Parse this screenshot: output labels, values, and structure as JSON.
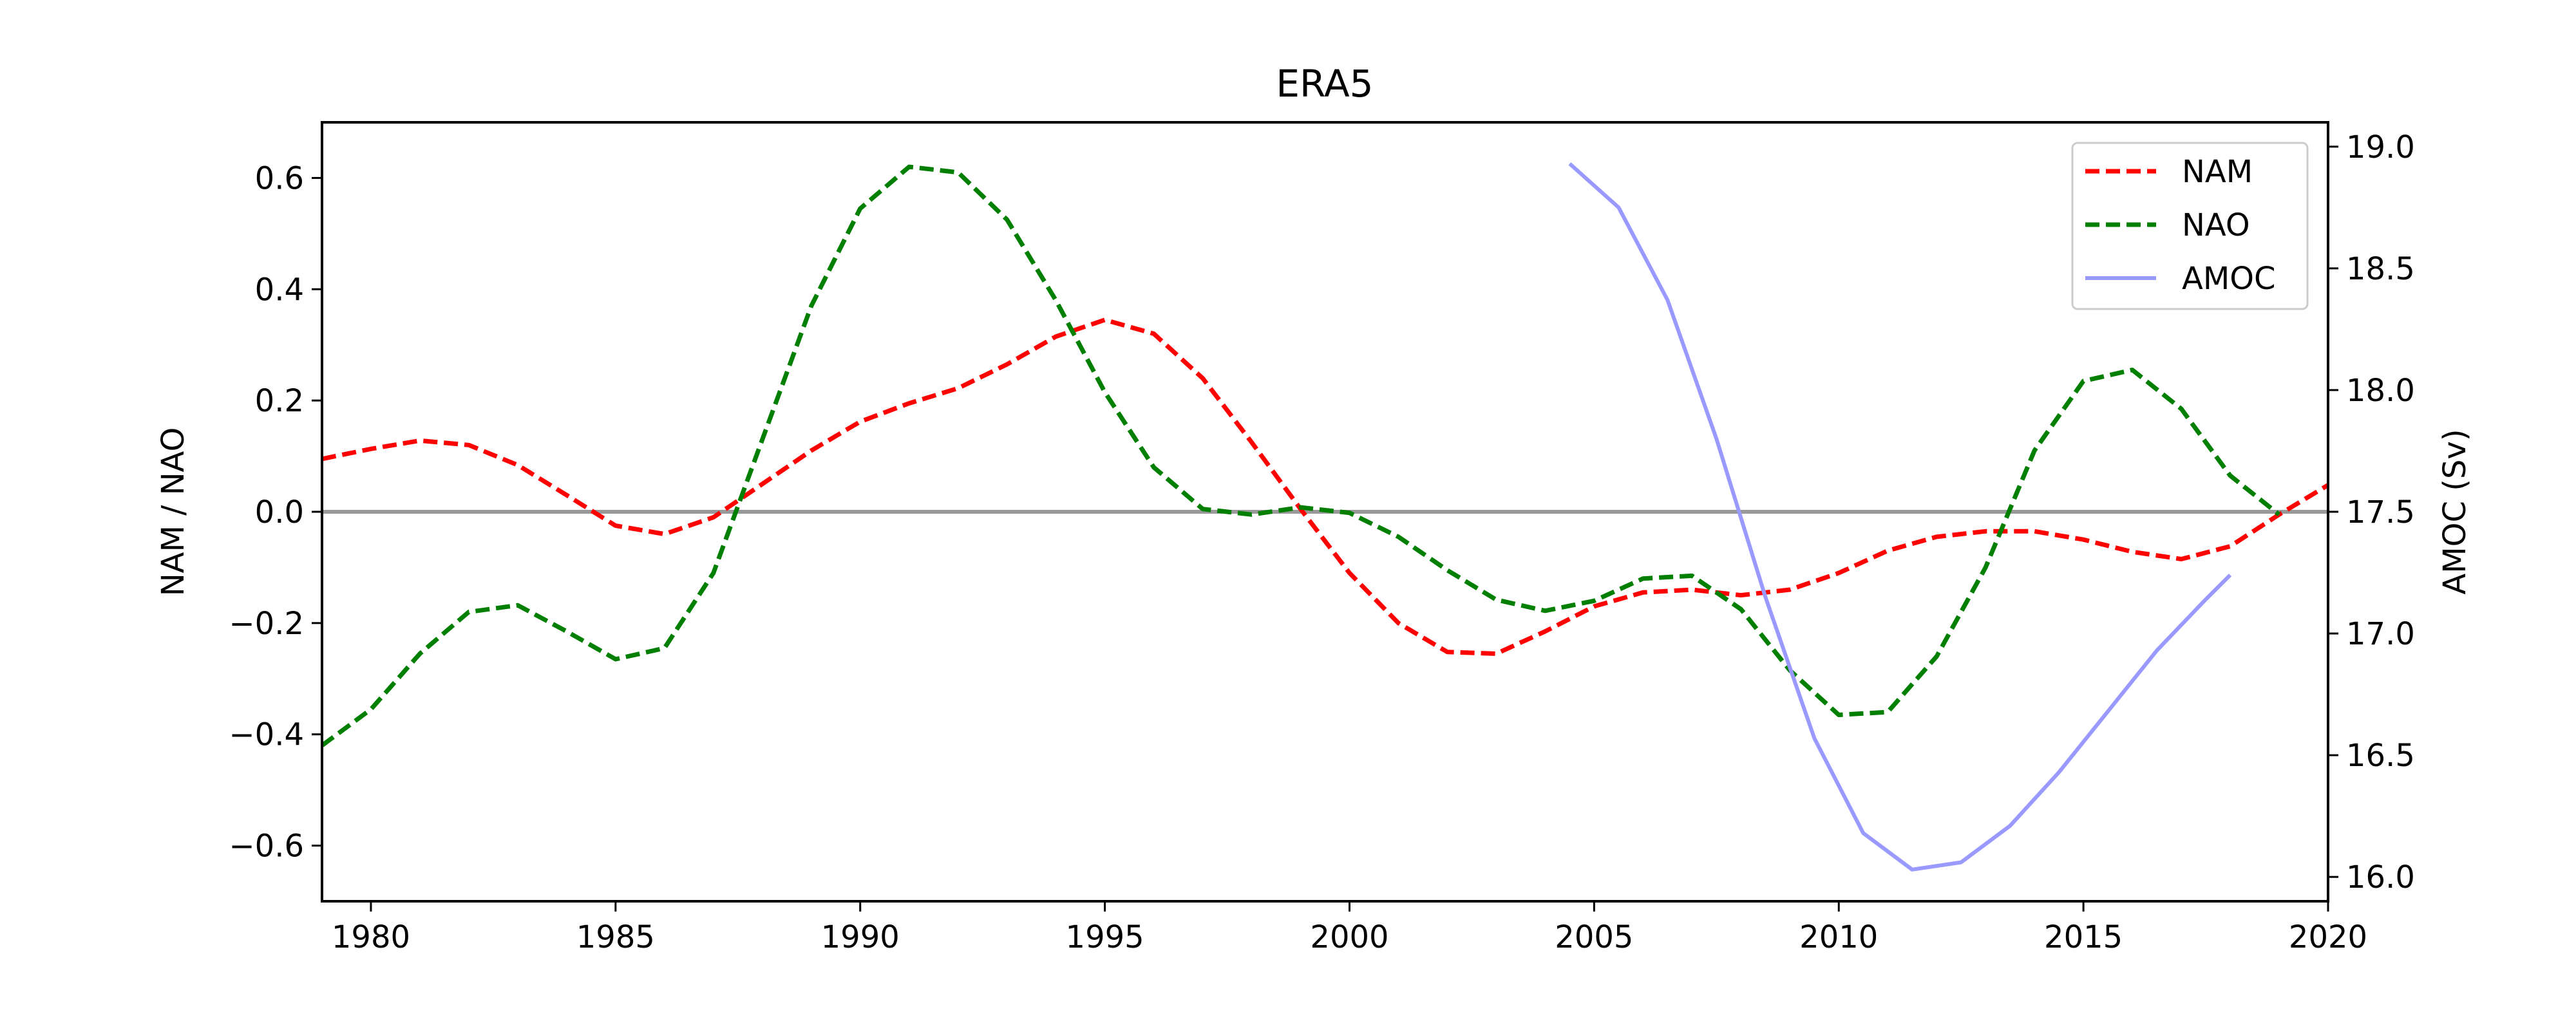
{
  "chart_data": {
    "type": "line",
    "title": "ERA5",
    "xlabel": "",
    "ylabel": "NAM / NAO",
    "y2label": "AMOC (Sv)",
    "xlim": [
      1979,
      2020
    ],
    "ylim": [
      -0.7,
      0.7
    ],
    "y2lim": [
      15.9,
      19.1
    ],
    "xticks": [
      1980,
      1985,
      1990,
      1995,
      2000,
      2005,
      2010,
      2015,
      2020
    ],
    "xtick_labels": [
      "1980",
      "1985",
      "1990",
      "1995",
      "2000",
      "2005",
      "2010",
      "2015",
      "2020"
    ],
    "yticks": [
      -0.6,
      -0.4,
      -0.2,
      0.0,
      0.2,
      0.4,
      0.6
    ],
    "ytick_labels": [
      "−0.6",
      "−0.4",
      "−0.2",
      "0.0",
      "0.2",
      "0.4",
      "0.6"
    ],
    "y2ticks": [
      16.0,
      16.5,
      17.0,
      17.5,
      18.0,
      18.5,
      19.0
    ],
    "y2tick_labels": [
      "16.0",
      "16.5",
      "17.0",
      "17.5",
      "18.0",
      "18.5",
      "19.0"
    ],
    "zero_line": 0.0,
    "grid": false,
    "legend_position": "top-right",
    "colors": {
      "NAM": "#ff0000",
      "NAO": "#007f00",
      "AMOC": "#9999ff",
      "zero": "#999999"
    },
    "series": [
      {
        "name": "NAM",
        "axis": "left",
        "style": "dashed",
        "x": [
          1979,
          1980,
          1981,
          1982,
          1983,
          1984,
          1985,
          1986,
          1987,
          1988,
          1989,
          1990,
          1991,
          1992,
          1993,
          1994,
          1995,
          1996,
          1997,
          1998,
          1999,
          2000,
          2001,
          2002,
          2003,
          2004,
          2005,
          2006,
          2007,
          2008,
          2009,
          2010,
          2011,
          2012,
          2013,
          2014,
          2015,
          2016,
          2017,
          2018,
          2019,
          2020
        ],
        "y": [
          0.095,
          0.113,
          0.128,
          0.12,
          0.084,
          0.03,
          -0.025,
          -0.04,
          -0.01,
          0.05,
          0.11,
          0.162,
          0.195,
          0.222,
          0.265,
          0.315,
          0.345,
          0.32,
          0.24,
          0.125,
          0.005,
          -0.11,
          -0.2,
          -0.252,
          -0.255,
          -0.215,
          -0.17,
          -0.145,
          -0.14,
          -0.15,
          -0.14,
          -0.11,
          -0.07,
          -0.045,
          -0.035,
          -0.035,
          -0.05,
          -0.072,
          -0.085,
          -0.062,
          -0.005,
          0.048
        ]
      },
      {
        "name": "NAO",
        "axis": "left",
        "style": "dashed",
        "x": [
          1979,
          1980,
          1981,
          1982,
          1983,
          1984,
          1985,
          1986,
          1987,
          1988,
          1989,
          1990,
          1991,
          1992,
          1993,
          1994,
          1995,
          1996,
          1997,
          1998,
          1999,
          2000,
          2001,
          2002,
          2003,
          2004,
          2005,
          2006,
          2007,
          2008,
          2009,
          2010,
          2011,
          2012,
          2013,
          2014,
          2015,
          2016,
          2017,
          2018,
          2019
        ],
        "y": [
          -0.42,
          -0.355,
          -0.255,
          -0.18,
          -0.168,
          -0.215,
          -0.265,
          -0.245,
          -0.11,
          0.13,
          0.37,
          0.545,
          0.62,
          0.61,
          0.525,
          0.38,
          0.215,
          0.08,
          0.005,
          -0.005,
          0.008,
          -0.002,
          -0.045,
          -0.105,
          -0.158,
          -0.178,
          -0.16,
          -0.12,
          -0.115,
          -0.175,
          -0.285,
          -0.365,
          -0.36,
          -0.26,
          -0.1,
          0.11,
          0.235,
          0.255,
          0.185,
          0.065,
          -0.005
        ]
      },
      {
        "name": "AMOC",
        "axis": "right",
        "style": "solid",
        "x": [
          2004.5,
          2005.5,
          2006.5,
          2007.5,
          2008.5,
          2009.5,
          2010.5,
          2011.5,
          2012.5,
          2013.5,
          2014.5,
          2015.5,
          2016.5,
          2017.5,
          2018.0
        ],
        "y": [
          18.93,
          18.75,
          18.37,
          17.8,
          17.15,
          16.57,
          16.18,
          16.03,
          16.06,
          16.21,
          16.43,
          16.68,
          16.93,
          17.14,
          17.24
        ]
      }
    ]
  }
}
